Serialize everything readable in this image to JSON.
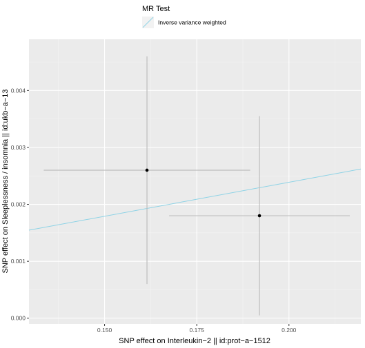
{
  "chart_data": {
    "type": "scatter",
    "xlabel": "SNP effect on Interleukin−2 || id:prot−a−1512",
    "ylabel": "SNP effect on Sleeplessness / insomnia || id:ukb−a−13",
    "xlim": [
      0.1295,
      0.2195
    ],
    "ylim": [
      -0.0001,
      0.0049
    ],
    "x_ticks": [
      0.15,
      0.175,
      0.2
    ],
    "x_tick_labels": [
      "0.150",
      "0.175",
      "0.200"
    ],
    "y_ticks": [
      0.0,
      0.001,
      0.002,
      0.003,
      0.004
    ],
    "y_tick_labels": [
      "0.000",
      "0.001",
      "0.002",
      "0.003",
      "0.004"
    ],
    "grid": true,
    "points": [
      {
        "x": 0.1615,
        "y": 0.0026,
        "x_err": [
          0.1335,
          0.1895
        ],
        "y_err": [
          0.0006,
          0.0046
        ]
      },
      {
        "x": 0.192,
        "y": 0.0018,
        "x_err": [
          0.1675,
          0.2165
        ],
        "y_err": [
          5e-05,
          0.00355
        ]
      }
    ],
    "lines": [
      {
        "name": "Inverse variance weighted",
        "slope": 0.01194,
        "intercept": 0.0,
        "color": "#8ed3e6"
      }
    ],
    "legend": {
      "title": "MR Test",
      "placement": "top",
      "entries": [
        "Inverse variance weighted"
      ]
    },
    "colors": {
      "panel": "#ebebeb",
      "grid_major": "#ffffff",
      "grid_minor": "#f4f4f4",
      "error_bar": "#bdbdbd",
      "point": "#000000"
    }
  }
}
